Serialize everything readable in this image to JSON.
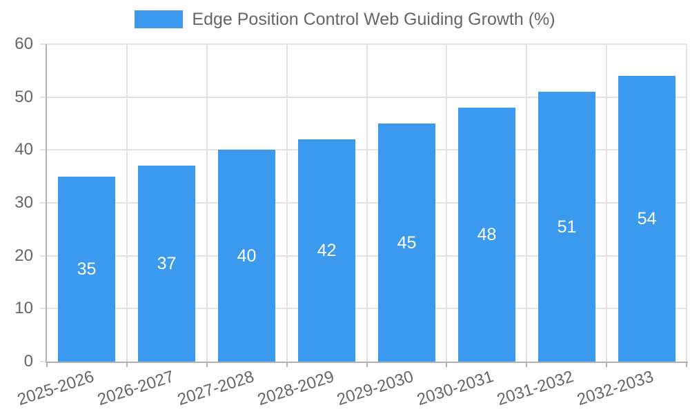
{
  "legend": {
    "label": "Edge Position Control Web Guiding Growth (%)"
  },
  "chart_data": {
    "type": "bar",
    "title": "Edge Position Control Web Guiding Growth (%)",
    "categories": [
      "2025-2026",
      "2026-2027",
      "2027-2028",
      "2028-2029",
      "2029-2030",
      "2030-2031",
      "2031-2032",
      "2032-2033"
    ],
    "values": [
      35,
      37,
      40,
      42,
      45,
      48,
      51,
      54
    ],
    "ylim": [
      0,
      60
    ],
    "yticks": [
      0,
      10,
      20,
      30,
      40,
      50,
      60
    ],
    "grid": true,
    "legend_position": "top",
    "x_tick_rotation_deg": -18,
    "colors": {
      "bar": "#3b99ee",
      "axis_text": "#666666",
      "grid_line": "#e3e3e3",
      "axis_line": "#b1b1b1",
      "x_tick_mark": "#b1b1b1",
      "value_label": "#ffffff",
      "background": "#ffffff"
    }
  }
}
